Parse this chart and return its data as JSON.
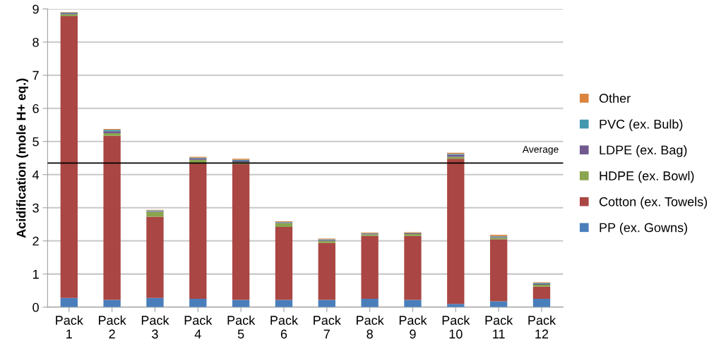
{
  "chart_data": {
    "type": "bar",
    "stacked": true,
    "ylabel": "Acidification (mole H+ eq.)",
    "categories": [
      "Pack\n1",
      "Pack\n2",
      "Pack\n3",
      "Pack\n4",
      "Pack\n5",
      "Pack\n6",
      "Pack\n7",
      "Pack\n8",
      "Pack\n9",
      "Pack\n10",
      "Pack\n11",
      "Pack\n12"
    ],
    "series": [
      {
        "name": "PP (ex. Gowns)",
        "color": "#4a7ebb",
        "values": [
          0.28,
          0.22,
          0.28,
          0.25,
          0.22,
          0.22,
          0.22,
          0.25,
          0.22,
          0.1,
          0.18,
          0.25
        ]
      },
      {
        "name": "Cotton (ex. Towels)",
        "color": "#aa4643",
        "values": [
          8.5,
          4.95,
          2.45,
          4.1,
          4.1,
          2.2,
          1.72,
          1.9,
          1.93,
          4.38,
          1.87,
          0.37
        ]
      },
      {
        "name": "HDPE (ex. Bowl)",
        "color": "#89a54e",
        "values": [
          0.06,
          0.08,
          0.15,
          0.1,
          0.06,
          0.12,
          0.06,
          0.05,
          0.06,
          0.06,
          0.05,
          0.06
        ]
      },
      {
        "name": "LDPE (ex. Bag)",
        "color": "#71588f",
        "values": [
          0.03,
          0.06,
          0.02,
          0.04,
          0.04,
          0.02,
          0.03,
          0.02,
          0.02,
          0.06,
          0.02,
          0.02
        ]
      },
      {
        "name": "PVC (ex. Bulb)",
        "color": "#4198af",
        "values": [
          0.02,
          0.04,
          0.02,
          0.02,
          0.03,
          0.01,
          0.02,
          0.01,
          0.01,
          0.03,
          0.02,
          0.03
        ]
      },
      {
        "name": "Other",
        "color": "#db843d",
        "values": [
          0.02,
          0.03,
          0.02,
          0.03,
          0.03,
          0.02,
          0.02,
          0.02,
          0.02,
          0.03,
          0.04,
          0.02
        ]
      }
    ],
    "ylim": [
      0,
      9
    ],
    "yticks": [
      0,
      1,
      2,
      3,
      4,
      5,
      6,
      7,
      8,
      9
    ],
    "grid": "y",
    "legend": "right",
    "ref_lines": [
      {
        "axis": "y",
        "value": 4.35,
        "label": "Average",
        "color": "#000000"
      }
    ]
  }
}
